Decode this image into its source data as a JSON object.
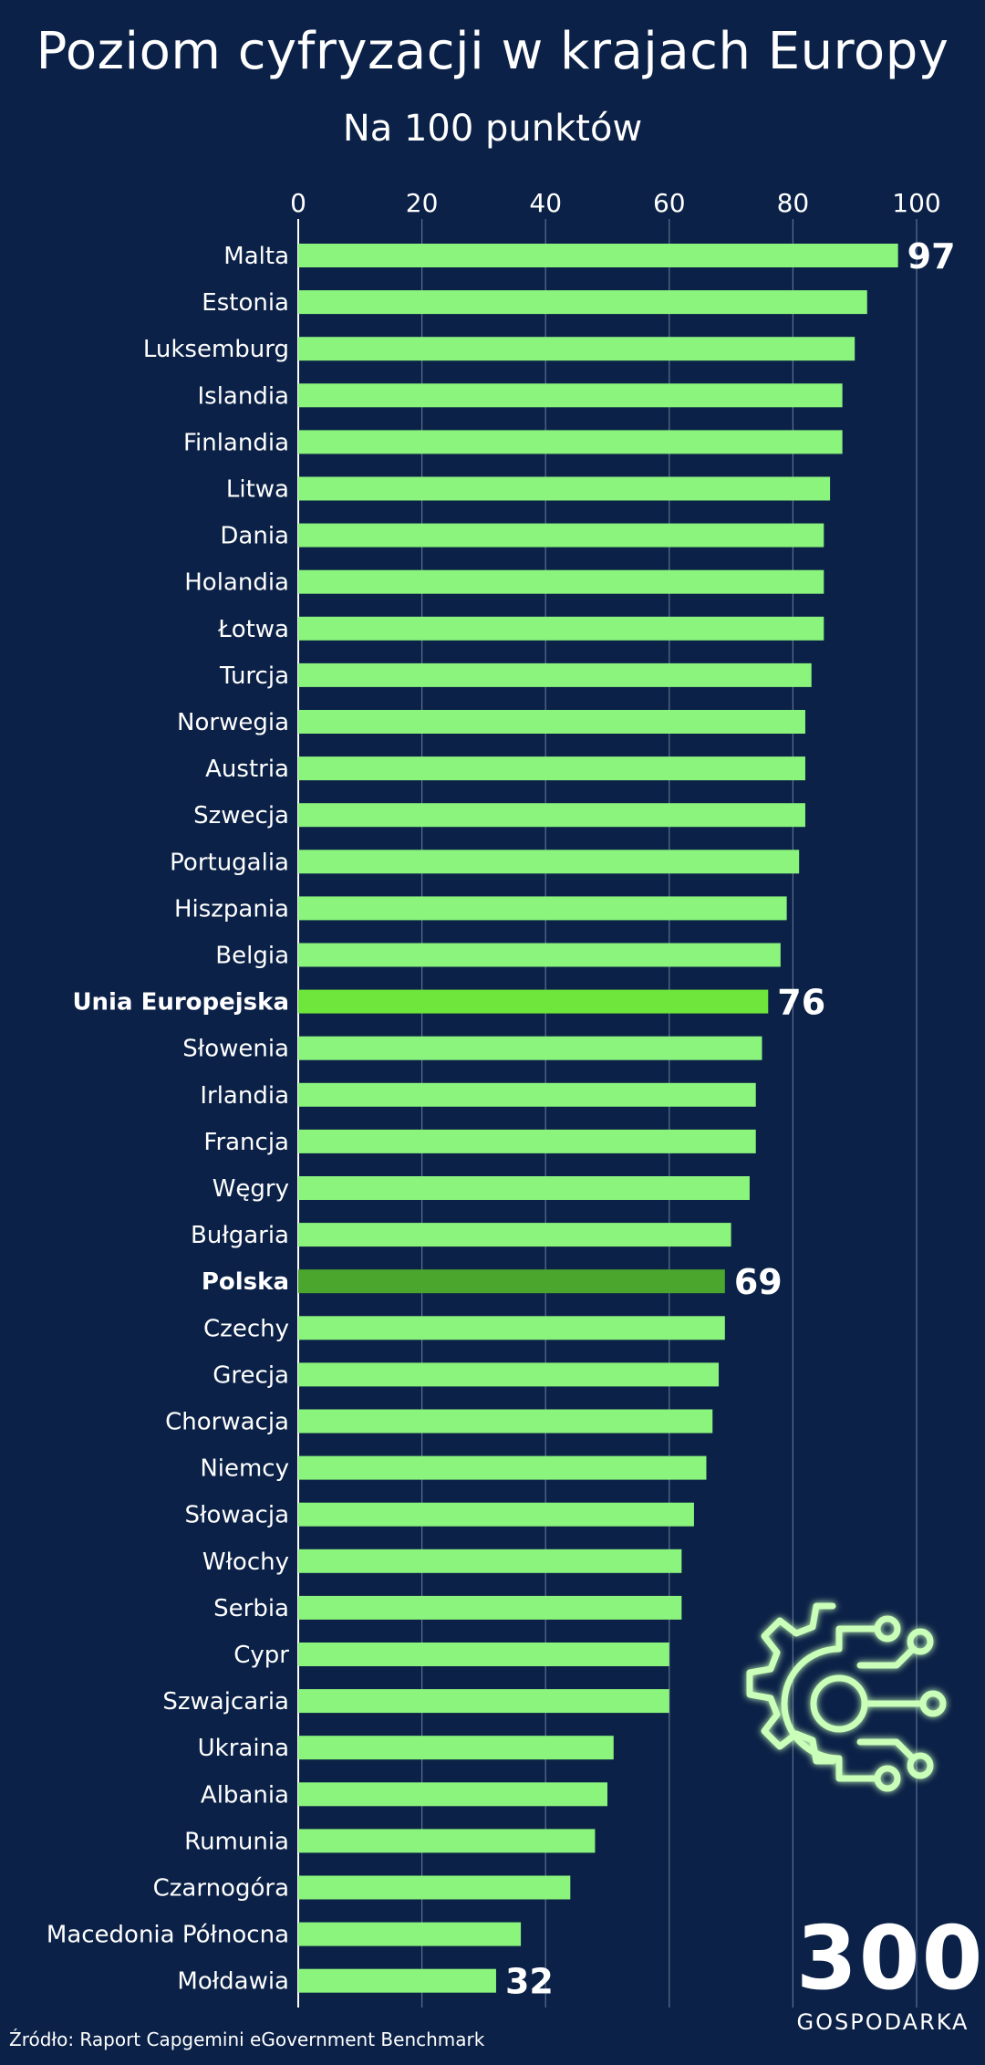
{
  "title": "Poziom cyfryzacji w krajach Europy",
  "subtitle": "Na 100 punktów",
  "source": "Źródło: Raport Capgemini eGovernment Benchmark",
  "logo": {
    "number": "300",
    "word": "GOSPODARKA"
  },
  "colors": {
    "background": "#0b2147",
    "bar": "#8af47c",
    "bar_eu": "#6ee63b",
    "bar_polska": "#4aa62c",
    "grid": "#5d6f8f",
    "icon_glow": "#7dff5a"
  },
  "icons": {
    "gear": "digital-gear-icon"
  },
  "chart_data": {
    "type": "bar",
    "orientation": "horizontal",
    "xlim": [
      0,
      100
    ],
    "xticks": [
      "0",
      "20",
      "40",
      "60",
      "80",
      "100"
    ],
    "grid": true,
    "categories": [
      "Malta",
      "Estonia",
      "Luksemburg",
      "Islandia",
      "Finlandia",
      "Litwa",
      "Dania",
      "Holandia",
      "Łotwa",
      "Turcja",
      "Norwegia",
      "Austria",
      "Szwecja",
      "Portugalia",
      "Hiszpania",
      "Belgia",
      "Unia Europejska",
      "Słowenia",
      "Irlandia",
      "Francja",
      "Węgry",
      "Bułgaria",
      "Polska",
      "Czechy",
      "Grecja",
      "Chorwacja",
      "Niemcy",
      "Słowacja",
      "Włochy",
      "Serbia",
      "Cypr",
      "Szwajcaria",
      "Ukraina",
      "Albania",
      "Rumunia",
      "Czarnogóra",
      "Macedonia Północna",
      "Mołdawia"
    ],
    "values": [
      97,
      92,
      90,
      88,
      88,
      86,
      85,
      85,
      85,
      83,
      82,
      82,
      82,
      81,
      79,
      78,
      76,
      75,
      74,
      74,
      73,
      70,
      69,
      69,
      68,
      67,
      66,
      64,
      62,
      62,
      60,
      60,
      51,
      50,
      48,
      44,
      36,
      32
    ],
    "highlighted": [
      "Unia Europejska",
      "Polska"
    ],
    "data_labels": [
      {
        "category": "Malta",
        "text": "97"
      },
      {
        "category": "Unia Europejska",
        "text": "76"
      },
      {
        "category": "Polska",
        "text": "69"
      },
      {
        "category": "Mołdawia",
        "text": "32"
      }
    ]
  }
}
